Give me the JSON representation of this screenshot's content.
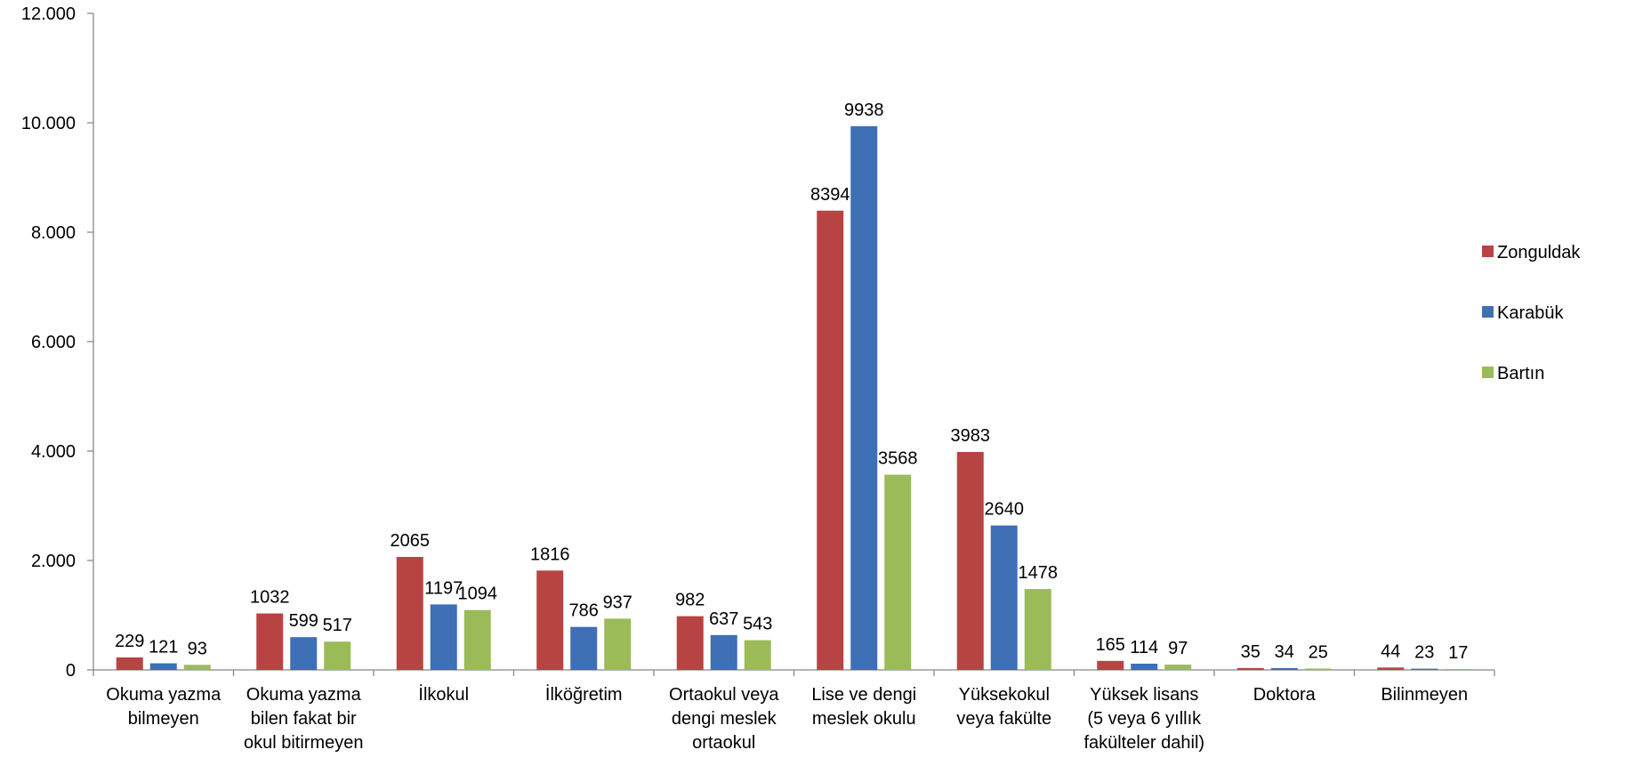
{
  "chart_data": {
    "type": "bar",
    "title": "",
    "xlabel": "",
    "ylabel": "",
    "ylim": [
      0,
      12000
    ],
    "yticks": [
      0,
      2000,
      4000,
      6000,
      8000,
      10000,
      12000
    ],
    "ytick_labels": [
      "0",
      "2.000",
      "4.000",
      "6.000",
      "8.000",
      "10.000",
      "12.000"
    ],
    "grid": false,
    "legend_position": "right",
    "categories": [
      [
        "Okuma yazma",
        "bilmeyen"
      ],
      [
        "Okuma yazma",
        "bilen fakat bir",
        "okul bitirmeyen"
      ],
      [
        "İlkokul"
      ],
      [
        "İlköğretim"
      ],
      [
        "Ortaokul veya",
        "dengi meslek",
        "ortaokul"
      ],
      [
        "Lise ve dengi",
        "meslek okulu"
      ],
      [
        "Yüksekokul",
        "veya fakülte"
      ],
      [
        "Yüksek lisans",
        "(5 veya 6 yıllık",
        "fakülteler dahil)"
      ],
      [
        "Doktora"
      ],
      [
        "Bilinmeyen"
      ]
    ],
    "series": [
      {
        "name": "Zonguldak",
        "color": "#B84343",
        "values": [
          229,
          1032,
          2065,
          1816,
          982,
          8394,
          3983,
          165,
          35,
          44
        ]
      },
      {
        "name": "Karabük",
        "color": "#3F6FB5",
        "values": [
          121,
          599,
          1197,
          786,
          637,
          9938,
          2640,
          114,
          34,
          23
        ]
      },
      {
        "name": "Bartın",
        "color": "#9BBB59",
        "values": [
          93,
          517,
          1094,
          937,
          543,
          3568,
          1478,
          97,
          25,
          17
        ]
      }
    ]
  }
}
